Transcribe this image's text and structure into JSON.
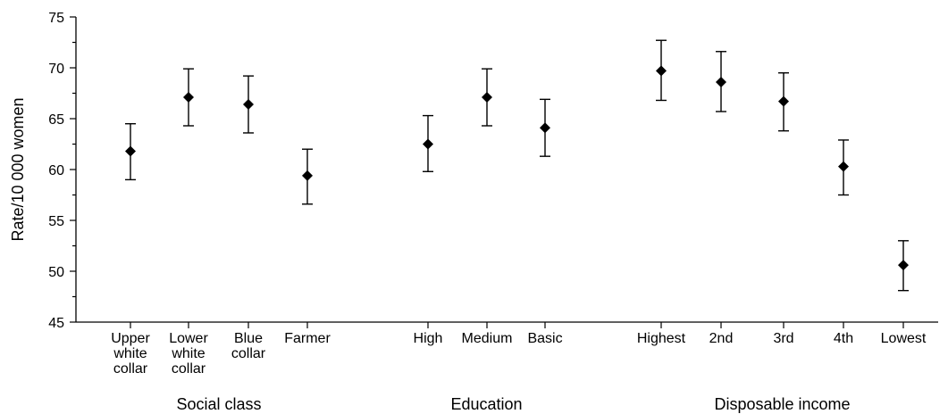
{
  "chart_data": {
    "type": "scatter",
    "ylabel": "Rate/10 000 women",
    "ylim": [
      45,
      75
    ],
    "yticks": [
      45,
      50,
      55,
      60,
      65,
      70,
      75
    ],
    "grid": false,
    "legend": "none",
    "marker": "diamond",
    "error_bars": true,
    "groups": [
      {
        "name": "Social class",
        "categories": [
          {
            "label": [
              "Upper",
              "white",
              "collar"
            ],
            "value": 61.8,
            "lower": 59.0,
            "upper": 64.5
          },
          {
            "label": [
              "Lower",
              "white",
              "collar"
            ],
            "value": 67.1,
            "lower": 64.3,
            "upper": 69.9
          },
          {
            "label": [
              "Blue",
              "collar"
            ],
            "value": 66.4,
            "lower": 63.6,
            "upper": 69.2
          },
          {
            "label": [
              "Farmer"
            ],
            "value": 59.4,
            "lower": 56.6,
            "upper": 62.0
          }
        ]
      },
      {
        "name": "Education",
        "categories": [
          {
            "label": [
              "High"
            ],
            "value": 62.5,
            "lower": 59.8,
            "upper": 65.3
          },
          {
            "label": [
              "Medium"
            ],
            "value": 67.1,
            "lower": 64.3,
            "upper": 69.9
          },
          {
            "label": [
              "Basic"
            ],
            "value": 64.1,
            "lower": 61.3,
            "upper": 66.9
          }
        ]
      },
      {
        "name": "Disposable income",
        "categories": [
          {
            "label": [
              "Highest"
            ],
            "value": 69.7,
            "lower": 66.8,
            "upper": 72.7
          },
          {
            "label": [
              "2nd"
            ],
            "value": 68.6,
            "lower": 65.7,
            "upper": 71.6
          },
          {
            "label": [
              "3rd"
            ],
            "value": 66.7,
            "lower": 63.8,
            "upper": 69.5
          },
          {
            "label": [
              "4th"
            ],
            "value": 60.3,
            "lower": 57.5,
            "upper": 62.9
          },
          {
            "label": [
              "Lowest"
            ],
            "value": 50.6,
            "lower": 48.1,
            "upper": 53.0
          }
        ]
      }
    ]
  }
}
